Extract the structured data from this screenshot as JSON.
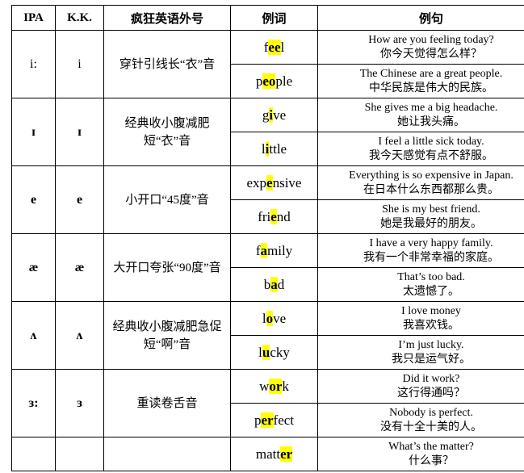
{
  "headers": {
    "ipa": "IPA",
    "kk": "K.K.",
    "nickname": "疯狂英语外号",
    "word": "例词",
    "sentence": "例句"
  },
  "highlight_color": "#ffff00",
  "rows": [
    {
      "ipa": "i:",
      "kk": "i",
      "bold": false,
      "nickname": "穿针引线长“衣”音",
      "examples": [
        {
          "pre": "f",
          "hl": "ee",
          "post": "l",
          "en": "How are you feeling today?",
          "zh": "你今天觉得怎么样？"
        },
        {
          "pre": "p",
          "hl": "eo",
          "post": "ple",
          "en": "The Chinese are a great people.",
          "zh": "中华民族是伟大的民族。"
        }
      ]
    },
    {
      "ipa": "ɪ",
      "kk": "ɪ",
      "bold": true,
      "nickname": "经典收小腹减肥短“衣”音",
      "examples": [
        {
          "pre": "g",
          "hl": "i",
          "post": "ve",
          "en": "She gives me a big headache.",
          "zh": "她让我头痛。"
        },
        {
          "pre": "l",
          "hl": "i",
          "post": "ttle",
          "en": "I feel a little sick today.",
          "zh": "我今天感觉有点不舒服。"
        }
      ]
    },
    {
      "ipa": "e",
      "kk": "e",
      "bold": true,
      "nickname": "小开口“45度”音",
      "examples": [
        {
          "pre": "exp",
          "hl": "e",
          "post": "nsive",
          "en": "Everything is so expensive in Japan.",
          "zh": "在日本什么东西都那么贵。"
        },
        {
          "pre": "fri",
          "hl": "e",
          "post": "nd",
          "en": "She is my best friend.",
          "zh": "她是我最好的朋友。"
        }
      ]
    },
    {
      "ipa": "æ",
      "kk": "æ",
      "bold": true,
      "nickname": "大开口夸张“90度”音",
      "examples": [
        {
          "pre": "f",
          "hl": "a",
          "post": "mily",
          "en": "I have a very happy family.",
          "zh": "我有一个非常幸福的家庭。"
        },
        {
          "pre": "b",
          "hl": "a",
          "post": "d",
          "en": "That’s too bad.",
          "zh": "太遗憾了。"
        }
      ]
    },
    {
      "ipa": "ʌ",
      "kk": "ʌ",
      "bold": true,
      "nickname": "经典收小腹减肥急促短“啊”音",
      "examples": [
        {
          "pre": "l",
          "hl": "o",
          "post": "ve",
          "en": "I love money",
          "zh": "我喜欢钱。"
        },
        {
          "pre": "l",
          "hl": "u",
          "post": "cky",
          "en": "I’m just lucky.",
          "zh": "我只是运气好。"
        }
      ]
    },
    {
      "ipa": "ɜ:",
      "kk": "ɜ",
      "bold": true,
      "nickname": "重读卷舌音",
      "examples": [
        {
          "pre": "w",
          "hl": "or",
          "post": "k",
          "en": "Did it work?",
          "zh": "这行得通吗？"
        },
        {
          "pre": "p",
          "hl": "er",
          "post": "fect",
          "en": "Nobody is perfect.",
          "zh": "没有十全十美的人。"
        }
      ]
    },
    {
      "ipa": "",
      "kk": "",
      "bold": false,
      "nickname": "",
      "examples": [
        {
          "pre": "matt",
          "hl": "er",
          "post": "",
          "en": "What’s the matter?",
          "zh": "什么事？"
        }
      ]
    }
  ]
}
